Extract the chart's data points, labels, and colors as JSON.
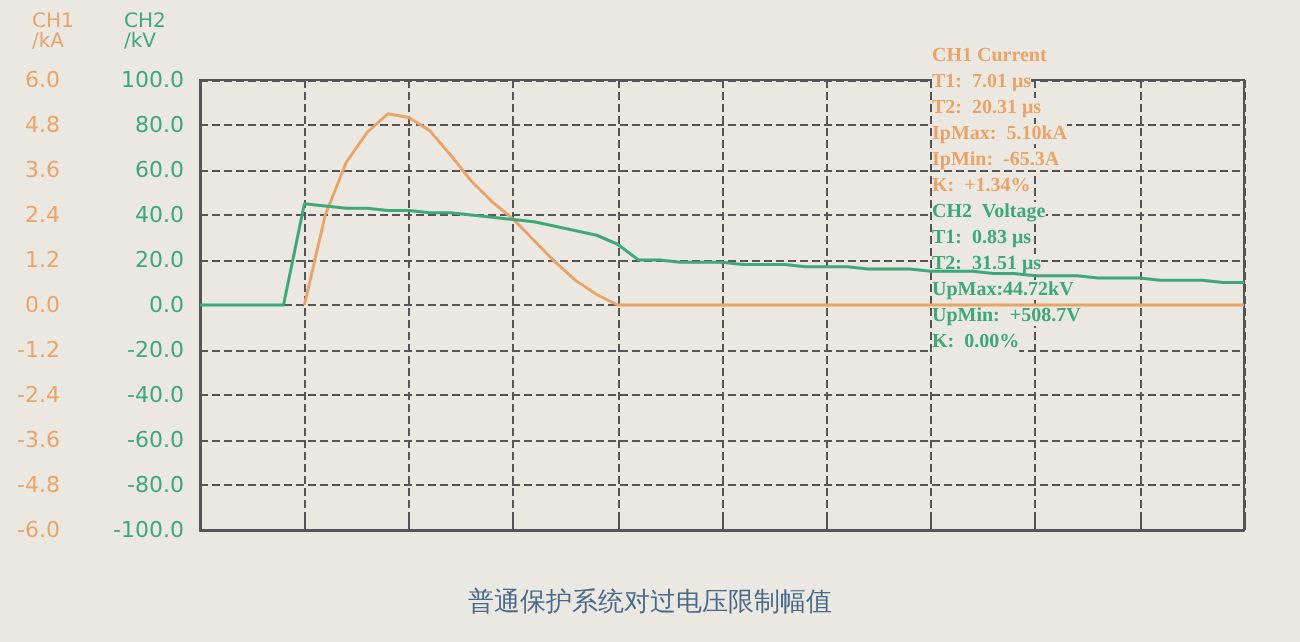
{
  "chart_data": {
    "type": "line",
    "title": "普通保护系统对过电压限制幅值",
    "ylabel": "CH2\n/kV",
    "y2label": "CH1\n/kA",
    "categories": [
      null,
      null,
      null,
      null,
      null,
      null,
      null,
      null,
      null,
      null,
      null,
      null,
      null,
      null,
      null,
      null,
      null,
      null,
      null,
      null,
      null,
      null,
      null,
      null,
      null,
      null,
      null,
      null,
      null,
      null,
      null,
      null,
      null,
      null,
      null,
      null,
      null,
      null,
      null,
      null,
      null,
      null,
      null,
      null,
      null,
      null,
      null,
      null,
      null,
      null,
      null
    ],
    "y2lim": [
      -6,
      6
    ],
    "y2ticks": [
      {
        "value": -6,
        "label": "-6.0"
      },
      {
        "value": -4.8,
        "label": "-4.8"
      },
      {
        "value": -3.6,
        "label": "-3.6"
      },
      {
        "value": -2.4,
        "label": "-2.4"
      },
      {
        "value": -1.2,
        "label": "-1.2"
      },
      {
        "value": 0,
        "label": "0.0"
      },
      {
        "value": 1.2,
        "label": "1.2"
      },
      {
        "value": 2.4,
        "label": "2.4"
      },
      {
        "value": 3.6,
        "label": "3.6"
      },
      {
        "value": 4.8,
        "label": "4.8"
      },
      {
        "value": 6,
        "label": "6.0"
      }
    ],
    "ylim": [
      -100,
      100
    ],
    "yticks": [
      {
        "value": -100,
        "label": "-100.0"
      },
      {
        "value": -80,
        "label": "-80.0"
      },
      {
        "value": -60,
        "label": "-60.0"
      },
      {
        "value": -40,
        "label": "-40.0"
      },
      {
        "value": -20,
        "label": "-20.0"
      },
      {
        "value": 0,
        "label": "0.0"
      },
      {
        "value": 20,
        "label": "20.0"
      },
      {
        "value": 40,
        "label": "40.0"
      },
      {
        "value": 60,
        "label": "60.0"
      },
      {
        "value": 80,
        "label": "80.0"
      },
      {
        "value": 100,
        "label": "100.0"
      }
    ],
    "tick_labels": "y",
    "grid": true,
    "marker": "none",
    "line_style": "solid",
    "series": [
      {
        "color": "#eba468",
        "axis": "y2",
        "values": [
          null,
          null,
          null,
          null,
          null,
          0,
          2.4,
          3.8,
          4.6,
          5.1,
          5.0,
          4.65,
          4.0,
          3.3,
          2.75,
          2.29,
          1.72,
          1.15,
          0.65,
          0.28,
          0,
          0,
          0,
          0,
          0,
          0,
          0,
          0,
          0,
          0,
          0,
          0,
          0,
          0,
          0,
          0,
          0,
          0,
          0,
          0,
          0,
          0,
          0,
          0,
          0,
          0,
          0,
          0,
          0,
          0,
          0
        ]
      },
      {
        "color": "#3fa878",
        "values": [
          0,
          0,
          0,
          0,
          0,
          45,
          44,
          43,
          43,
          42,
          42,
          41,
          41,
          40,
          39,
          38,
          37,
          35,
          33,
          31,
          27,
          20,
          20,
          19,
          19,
          19,
          18,
          18,
          18,
          17,
          17,
          17,
          16,
          16,
          16,
          15,
          15,
          15,
          14,
          14,
          13,
          13,
          13,
          12,
          12,
          12,
          11,
          11,
          11,
          10,
          10
        ]
      }
    ],
    "annotations": [
      "CH1 Current",
      "T1:  7.01 μs",
      "T2:  20.31 μs",
      "IpMax:  5.10kA",
      "IpMin:  -65.3A",
      "K:  +1.34%",
      "CH2  Voltage",
      "T1:  0.83 μs",
      "T2:  31.51 μs",
      "UpMax:44.72kV",
      "UpMin:  +508.7V",
      "K:  0.00%"
    ]
  }
}
